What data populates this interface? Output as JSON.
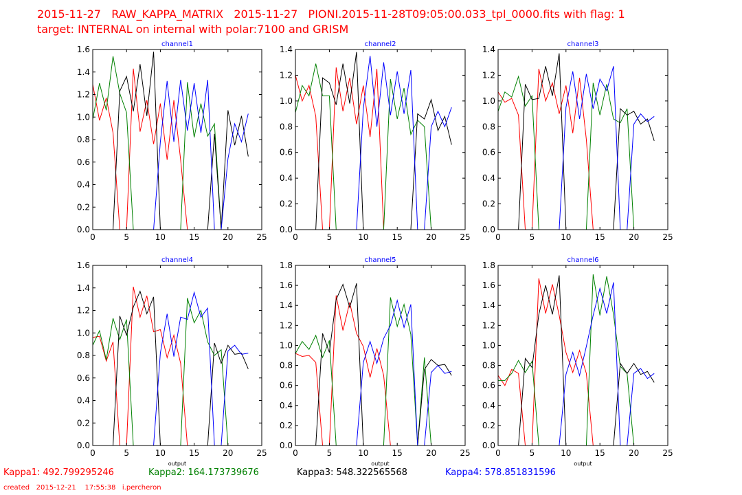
{
  "header": {
    "line1": "2015-11-27   RAW_KAPPA_MATRIX   2015-11-27   PIONI.2015-11-28T09:05:00.033_tpl_0000.fits with flag: 1",
    "line2": "target: INTERNAL on internal with polar:7100 and GRISM"
  },
  "colors": {
    "red": "#ff0000",
    "green": "#008000",
    "black": "#000000",
    "blue": "#0000ff"
  },
  "footer": {
    "kappa1": "Kappa1: 492.799295246",
    "kappa2": "Kappa2: 164.173739676",
    "kappa3": "Kappa3: 548.322565568",
    "kappa4": "Kappa4: 578.851831596",
    "created": "created   2015-12-21    17:55:38   i.percheron"
  },
  "chart_data": [
    {
      "type": "line",
      "title": "channel1",
      "xlabel": "",
      "ylabel": "",
      "xlim": [
        0,
        25
      ],
      "ylim": [
        0,
        1.6
      ],
      "xticks": [
        "0",
        "5",
        "10",
        "15",
        "20",
        "25"
      ],
      "yticks": [
        "0.0",
        "0.2",
        "0.4",
        "0.6",
        "0.8",
        "1.0",
        "1.2",
        "1.4",
        "1.6"
      ],
      "x": [
        0,
        1,
        2,
        3,
        4,
        5,
        6,
        7,
        8,
        9,
        10,
        11,
        12,
        13,
        14,
        15,
        16,
        17,
        18,
        19,
        20,
        21,
        22,
        23
      ],
      "series": [
        {
          "name": "red",
          "color": "#ff0000",
          "values": [
            1.29,
            0.97,
            1.17,
            0.86,
            0,
            0,
            1.43,
            0.87,
            1.15,
            0.76,
            1.12,
            0.62,
            1.15,
            0.62,
            0,
            0,
            0,
            0,
            0,
            0,
            0,
            0,
            0,
            0
          ]
        },
        {
          "name": "green",
          "color": "#008000",
          "values": [
            0.98,
            1.3,
            1.06,
            1.54,
            1.21,
            1.04,
            0,
            0,
            0,
            0,
            0,
            0,
            0,
            0,
            1.31,
            0.82,
            1.12,
            0.83,
            0.94,
            0,
            0,
            0,
            0,
            0
          ]
        },
        {
          "name": "black",
          "color": "#000000",
          "values": [
            0,
            0,
            0,
            0,
            1.23,
            1.36,
            1.05,
            1.47,
            1.01,
            1.58,
            0,
            0,
            0,
            0,
            0,
            0,
            0,
            0,
            0.85,
            0,
            1.06,
            0.75,
            1.01,
            0.65
          ]
        },
        {
          "name": "blue",
          "color": "#0000ff",
          "values": [
            0,
            0,
            0,
            0,
            0,
            0,
            0,
            0,
            0,
            0,
            0.78,
            1.32,
            0.78,
            1.33,
            0.88,
            1.3,
            0.86,
            1.33,
            0,
            0,
            0.63,
            0.94,
            0.78,
            1.03
          ]
        }
      ]
    },
    {
      "type": "line",
      "title": "channel2",
      "xlabel": "",
      "ylabel": "",
      "xlim": [
        0,
        25
      ],
      "ylim": [
        0,
        1.4
      ],
      "xticks": [
        "0",
        "5",
        "10",
        "15",
        "20",
        "25"
      ],
      "yticks": [
        "0.0",
        "0.2",
        "0.4",
        "0.6",
        "0.8",
        "1.0",
        "1.2",
        "1.4"
      ],
      "x": [
        0,
        1,
        2,
        3,
        4,
        5,
        6,
        7,
        8,
        9,
        10,
        11,
        12,
        13,
        14,
        15,
        16,
        17,
        18,
        19,
        20,
        21,
        22,
        23
      ],
      "series": [
        {
          "name": "red",
          "color": "#ff0000",
          "values": [
            1.2,
            1.0,
            1.12,
            0.88,
            0,
            0,
            1.26,
            0.92,
            1.18,
            0.82,
            1.12,
            0.72,
            1.25,
            0,
            0,
            0,
            0,
            0,
            0,
            0,
            0,
            0,
            0,
            0
          ]
        },
        {
          "name": "green",
          "color": "#008000",
          "values": [
            0.91,
            1.12,
            1.04,
            1.29,
            1.04,
            1.04,
            0,
            0,
            0,
            0,
            0,
            0,
            0,
            0,
            1.17,
            0.86,
            1.1,
            0.74,
            0.85,
            0.8,
            0,
            0,
            0,
            0
          ]
        },
        {
          "name": "black",
          "color": "#000000",
          "values": [
            0,
            0,
            0,
            0,
            1.18,
            1.14,
            0.97,
            1.29,
            0.98,
            1.38,
            0,
            0,
            0,
            0,
            0,
            0,
            0,
            0,
            0.9,
            0.86,
            1.01,
            0.77,
            0.88,
            0.66
          ]
        },
        {
          "name": "blue",
          "color": "#0000ff",
          "values": [
            0,
            0,
            0,
            0,
            0,
            0,
            0,
            0,
            0,
            0,
            0.94,
            1.35,
            0.8,
            1.3,
            0.89,
            1.23,
            0.9,
            1.24,
            0,
            0,
            0.8,
            0.92,
            0.8,
            0.95
          ]
        }
      ]
    },
    {
      "type": "line",
      "title": "channel3",
      "xlabel": "",
      "ylabel": "",
      "xlim": [
        0,
        25
      ],
      "ylim": [
        0,
        1.4
      ],
      "xticks": [
        "0",
        "5",
        "10",
        "15",
        "20",
        "25"
      ],
      "yticks": [
        "0.0",
        "0.2",
        "0.4",
        "0.6",
        "0.8",
        "1.0",
        "1.2",
        "1.4"
      ],
      "x": [
        0,
        1,
        2,
        3,
        4,
        5,
        6,
        7,
        8,
        9,
        10,
        11,
        12,
        13,
        14,
        15,
        16,
        17,
        18,
        19,
        20,
        21,
        22,
        23
      ],
      "series": [
        {
          "name": "red",
          "color": "#ff0000",
          "values": [
            1.07,
            0.99,
            1.02,
            0.89,
            0,
            0,
            1.25,
            1.0,
            1.14,
            0.9,
            1.12,
            0.75,
            1.18,
            0.7,
            0,
            0,
            0,
            0,
            0,
            0,
            0,
            0,
            0,
            0
          ]
        },
        {
          "name": "green",
          "color": "#008000",
          "values": [
            0.92,
            1.07,
            1.03,
            1.19,
            0.96,
            1.04,
            0,
            0,
            0,
            0,
            0,
            0,
            0,
            0,
            1.14,
            0.89,
            1.13,
            0.86,
            0.83,
            0.94,
            0,
            0,
            0,
            0
          ]
        },
        {
          "name": "black",
          "color": "#000000",
          "values": [
            0,
            0,
            0,
            0,
            1.13,
            1.01,
            1.02,
            1.27,
            1.04,
            1.37,
            0,
            0,
            0,
            0,
            0,
            0,
            0,
            0,
            0.94,
            0.89,
            0.92,
            0.82,
            0.86,
            0.69
          ]
        },
        {
          "name": "blue",
          "color": "#0000ff",
          "values": [
            0,
            0,
            0,
            0,
            0,
            0,
            0,
            0,
            0,
            0,
            0.95,
            1.23,
            0.86,
            1.21,
            0.94,
            1.17,
            1.08,
            1.27,
            0,
            0,
            0.82,
            0.9,
            0.84,
            0.88
          ]
        }
      ]
    },
    {
      "type": "line",
      "title": "channel4",
      "xlabel": "output",
      "ylabel": "",
      "xlim": [
        0,
        25
      ],
      "ylim": [
        0,
        1.6
      ],
      "xticks": [
        "0",
        "5",
        "10",
        "15",
        "20",
        "25"
      ],
      "yticks": [
        "0.0",
        "0.2",
        "0.4",
        "0.6",
        "0.8",
        "1.0",
        "1.2",
        "1.4",
        "1.6"
      ],
      "x": [
        0,
        1,
        2,
        3,
        4,
        5,
        6,
        7,
        8,
        9,
        10,
        11,
        12,
        13,
        14,
        15,
        16,
        17,
        18,
        19,
        20,
        21,
        22,
        23
      ],
      "series": [
        {
          "name": "red",
          "color": "#ff0000",
          "values": [
            0.96,
            0.97,
            0.75,
            0.92,
            0,
            0,
            1.41,
            1.14,
            1.33,
            1.01,
            1.03,
            0.78,
            0.98,
            0.73,
            0,
            0,
            0,
            0,
            0,
            0,
            0,
            0,
            0,
            0
          ]
        },
        {
          "name": "green",
          "color": "#008000",
          "values": [
            0.89,
            1.02,
            0.76,
            1.13,
            0.94,
            1.12,
            0,
            0,
            0,
            0,
            0,
            0,
            0,
            0,
            1.31,
            1.09,
            1.2,
            0.92,
            0.8,
            0.85,
            0,
            0,
            0,
            0
          ]
        },
        {
          "name": "black",
          "color": "#000000",
          "values": [
            0,
            0,
            0,
            0,
            1.15,
            0.98,
            1.23,
            1.37,
            1.17,
            1.32,
            0,
            0,
            0,
            0,
            0,
            0,
            0,
            0,
            0.91,
            0.73,
            0.89,
            0.81,
            0.82,
            0.68
          ]
        },
        {
          "name": "blue",
          "color": "#0000ff",
          "values": [
            0,
            0,
            0,
            0,
            0,
            0,
            0,
            0,
            0,
            0,
            0.82,
            1.17,
            0.79,
            1.14,
            1.12,
            1.36,
            1.14,
            1.22,
            0,
            0,
            0.84,
            0.89,
            0.81,
            0.82
          ]
        }
      ]
    },
    {
      "type": "line",
      "title": "channel5",
      "xlabel": "output",
      "ylabel": "",
      "xlim": [
        0,
        25
      ],
      "ylim": [
        0,
        1.8
      ],
      "xticks": [
        "0",
        "5",
        "10",
        "15",
        "20",
        "25"
      ],
      "yticks": [
        "0.0",
        "0.2",
        "0.4",
        "0.6",
        "0.8",
        "1.0",
        "1.2",
        "1.4",
        "1.6",
        "1.8"
      ],
      "x": [
        0,
        1,
        2,
        3,
        4,
        5,
        6,
        7,
        8,
        9,
        10,
        11,
        12,
        13,
        14,
        15,
        16,
        17,
        18,
        19,
        20,
        21,
        22,
        23
      ],
      "series": [
        {
          "name": "red",
          "color": "#ff0000",
          "values": [
            0.92,
            0.89,
            0.9,
            0.83,
            0,
            0,
            1.5,
            1.15,
            1.43,
            1.12,
            0.99,
            0.68,
            0.97,
            0.7,
            0,
            0,
            0,
            0,
            0,
            0,
            0,
            0,
            0,
            0
          ]
        },
        {
          "name": "green",
          "color": "#008000",
          "values": [
            0.92,
            1.04,
            0.96,
            1.1,
            0.88,
            1.05,
            0,
            0,
            0,
            0,
            0,
            0,
            0,
            0,
            1.48,
            1.19,
            1.41,
            1.11,
            0,
            0.88,
            0,
            0,
            0,
            0
          ]
        },
        {
          "name": "black",
          "color": "#000000",
          "values": [
            0,
            0,
            0,
            0,
            1.12,
            0.93,
            1.46,
            1.61,
            1.38,
            1.62,
            0,
            0,
            0,
            0,
            0,
            0,
            0,
            0,
            0,
            0.76,
            0.86,
            0.8,
            0.81,
            0.7
          ]
        },
        {
          "name": "blue",
          "color": "#0000ff",
          "values": [
            0,
            0,
            0,
            0,
            0,
            0,
            0,
            0,
            0,
            0,
            0.83,
            1.04,
            0.82,
            1.07,
            1.2,
            1.45,
            1.18,
            1.41,
            0,
            0,
            0.73,
            0.8,
            0.72,
            0.74
          ]
        }
      ]
    },
    {
      "type": "line",
      "title": "channel6",
      "xlabel": "output",
      "ylabel": "",
      "xlim": [
        0,
        25
      ],
      "ylim": [
        0,
        1.8
      ],
      "xticks": [
        "0",
        "5",
        "10",
        "15",
        "20",
        "25"
      ],
      "yticks": [
        "0.0",
        "0.2",
        "0.4",
        "0.6",
        "0.8",
        "1.0",
        "1.2",
        "1.4",
        "1.6",
        "1.8"
      ],
      "x": [
        0,
        1,
        2,
        3,
        4,
        5,
        6,
        7,
        8,
        9,
        10,
        11,
        12,
        13,
        14,
        15,
        16,
        17,
        18,
        19,
        20,
        21,
        22,
        23
      ],
      "series": [
        {
          "name": "red",
          "color": "#ff0000",
          "values": [
            0.7,
            0.6,
            0.76,
            0.72,
            0,
            0,
            1.67,
            1.32,
            1.61,
            1.3,
            0.93,
            0.73,
            0.95,
            0.72,
            0,
            0,
            0,
            0,
            0,
            0,
            0,
            0,
            0,
            0
          ]
        },
        {
          "name": "green",
          "color": "#008000",
          "values": [
            0.65,
            0.65,
            0.72,
            0.85,
            0.73,
            0.84,
            0,
            0,
            0,
            0,
            0,
            0,
            0,
            0,
            1.71,
            1.3,
            1.69,
            1.31,
            0.79,
            0.72,
            0,
            0,
            0,
            0
          ]
        },
        {
          "name": "black",
          "color": "#000000",
          "values": [
            0,
            0,
            0,
            0,
            0.87,
            0.78,
            1.31,
            1.6,
            1.31,
            1.7,
            0,
            0,
            0,
            0,
            0,
            0,
            0,
            0,
            0.82,
            0.72,
            0.82,
            0.71,
            0.74,
            0.63
          ]
        },
        {
          "name": "blue",
          "color": "#0000ff",
          "values": [
            0,
            0,
            0,
            0,
            0,
            0,
            0,
            0,
            0,
            0,
            0.71,
            0.93,
            0.7,
            0.99,
            1.3,
            1.57,
            1.32,
            1.63,
            0,
            0,
            0.72,
            0.77,
            0.67,
            0.72
          ]
        }
      ]
    }
  ]
}
